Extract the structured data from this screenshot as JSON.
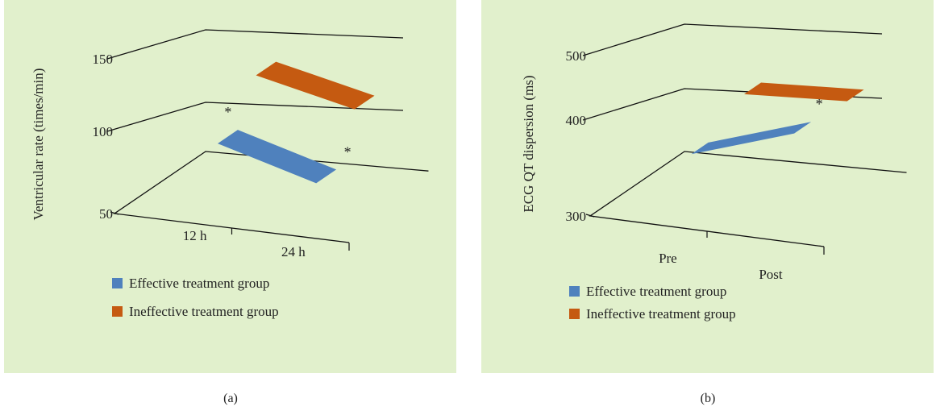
{
  "chart_data": [
    {
      "type": "bar",
      "style": "3d-ribbon",
      "panel_label": "(a)",
      "ylabel": "Ventricular rate (times/min)",
      "yticks": [
        50,
        100,
        150
      ],
      "ylim": [
        50,
        150
      ],
      "categories": [
        "12 h",
        "24 h"
      ],
      "series": [
        {
          "name": "Effective treatment group",
          "values": [
            98,
            79
          ],
          "color": "#4f81bd"
        },
        {
          "name": "Ineffective treatment group",
          "values": [
            127,
            112
          ],
          "color": "#c55a11"
        }
      ],
      "annotations": [
        "*",
        "*"
      ],
      "grid": true,
      "legend": "bottom"
    },
    {
      "type": "bar",
      "style": "3d-ribbon",
      "panel_label": "(b)",
      "ylabel": "ECG QT dispersion (ms)",
      "yticks": [
        300,
        400,
        500
      ],
      "ylim": [
        300,
        500
      ],
      "categories": [
        "Pre",
        "Post"
      ],
      "series": [
        {
          "name": "Effective treatment group",
          "values": [
            395,
            448
          ],
          "color": "#4f81bd"
        },
        {
          "name": "Ineffective treatment group",
          "values": [
            432,
            442
          ],
          "color": "#c55a11"
        }
      ],
      "annotations": [
        "*"
      ],
      "grid": true,
      "legend": "bottom"
    }
  ]
}
